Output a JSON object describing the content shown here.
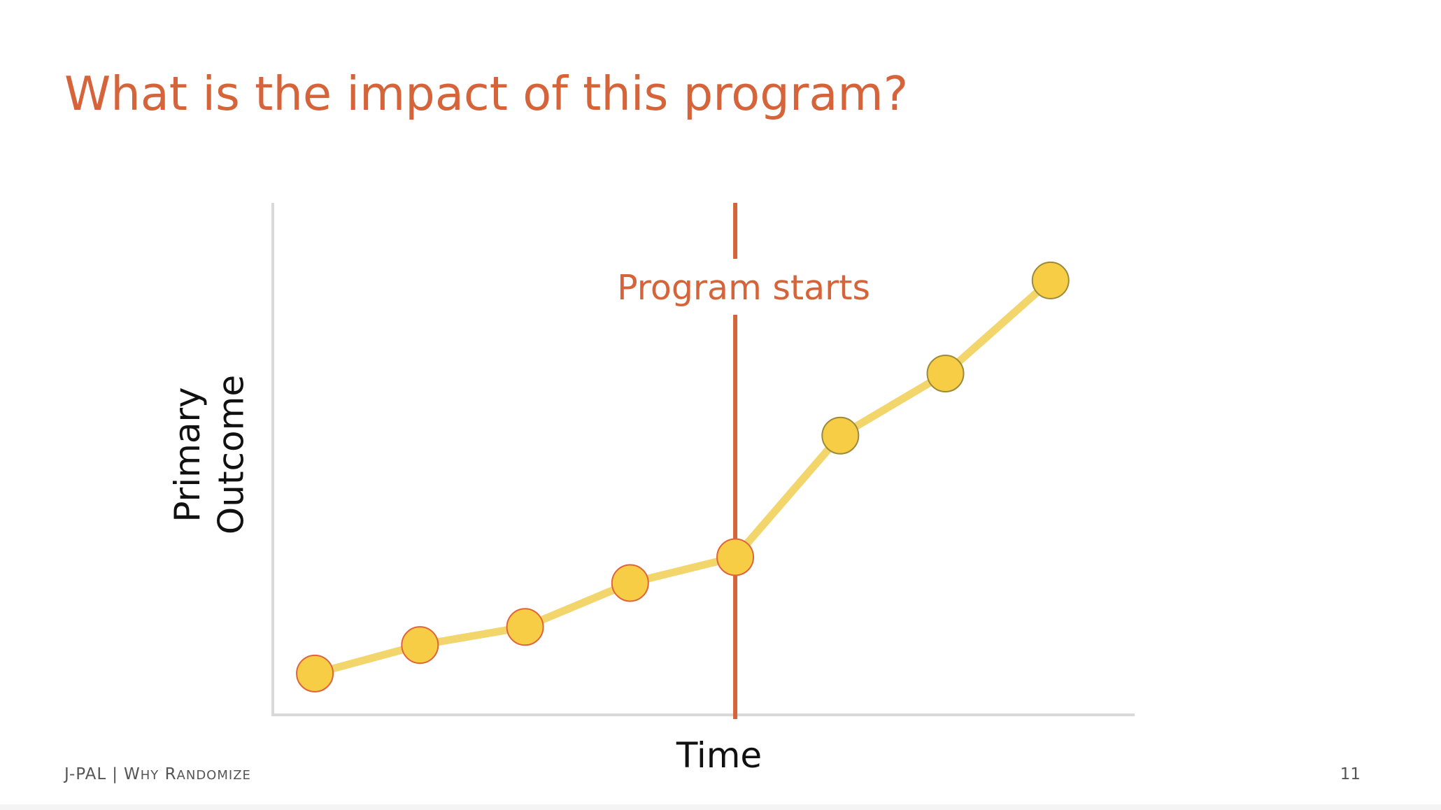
{
  "slide": {
    "title": "What is the impact of this program?",
    "footer": {
      "org": "J-PAL",
      "separator": "|",
      "section_first_letter_1": "W",
      "section_rest_1": "HY",
      "section_first_letter_2": "R",
      "section_rest_2": "ANDOMIZE",
      "page_number": "11"
    }
  },
  "colors": {
    "title": "#d5643a",
    "marker_line": "#d5643a",
    "series_line": "#f2d56b",
    "point_fill": "#f7cd45",
    "point_stroke_pre": "#e0643a",
    "point_stroke_post": "#9a8a3a",
    "axis": "#d9d9d9"
  },
  "chart_data": {
    "type": "line",
    "title": "",
    "xlabel": "Time",
    "ylabel_lines": [
      "Primary",
      "Outcome"
    ],
    "x": [
      1,
      2,
      3,
      4,
      5,
      6,
      7,
      8
    ],
    "series": [
      {
        "values": [
          0.6,
          1.15,
          1.5,
          2.35,
          2.85,
          5.2,
          6.4,
          8.2
        ]
      }
    ],
    "xlim": [
      0.6,
      8.8
    ],
    "ylim": [
      -0.2,
      9.7
    ],
    "grid": false,
    "legend": "none",
    "annotations": [
      {
        "type": "vline",
        "x": 5,
        "label": "Program starts"
      }
    ]
  }
}
